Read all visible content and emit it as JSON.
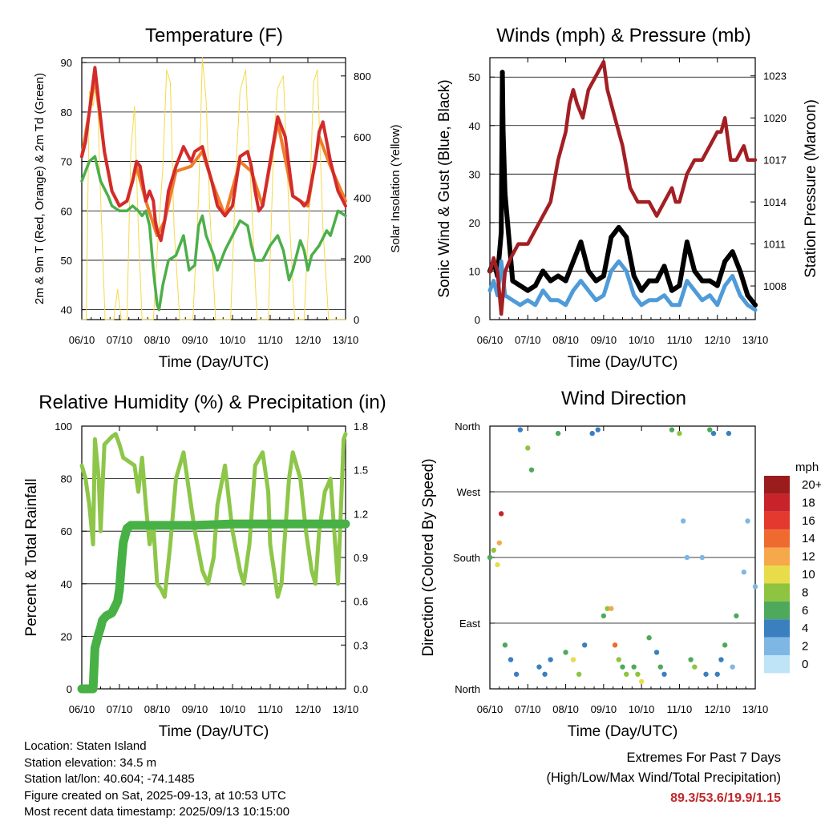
{
  "x_ticks": [
    "06/10",
    "07/10",
    "08/10",
    "09/10",
    "10/10",
    "11/10",
    "12/10",
    "13/10"
  ],
  "chart_data": [
    {
      "type": "line",
      "title": "Temperature (F)",
      "xlabel": "Time (Day/UTC)",
      "ylabel": "2m & 9m T (Red, Orange) & 2m Td (Green)",
      "ylabel_right": "Solar Insolation (Yellow)",
      "ylim": [
        38,
        91
      ],
      "yticks": [
        "90",
        "80",
        "70",
        "60",
        "50",
        "40"
      ],
      "ylim_right": [
        0,
        860
      ],
      "yticks_right": [
        "800",
        "600",
        "400",
        "200",
        "0"
      ],
      "colors": {
        "temp_2m": "#d32b2b",
        "temp_9m": "#f07d2a",
        "dewpoint_2m": "#4caf4a",
        "insolation": "#f5d94a"
      },
      "series": [
        {
          "name": "2m T",
          "x": [
            6.0,
            6.1,
            6.2,
            6.35,
            6.45,
            6.6,
            6.8,
            7.0,
            7.2,
            7.35,
            7.45,
            7.55,
            7.7,
            7.8,
            7.9,
            7.95,
            8.0,
            8.1,
            8.2,
            8.3,
            8.5,
            8.7,
            8.9,
            9.0,
            9.2,
            9.3,
            9.45,
            9.6,
            9.8,
            10.0,
            10.2,
            10.4,
            10.5,
            10.6,
            10.7,
            10.8,
            11.0,
            11.2,
            11.4,
            11.6,
            11.8,
            11.9,
            12.0,
            12.2,
            12.3,
            12.4,
            12.6,
            12.8,
            13.0
          ],
          "y": [
            71,
            74,
            80,
            89,
            82,
            72,
            64,
            61,
            62,
            66,
            70,
            69,
            62,
            64,
            62,
            58,
            56,
            54,
            58,
            64,
            69,
            73,
            70,
            72,
            73,
            70,
            66,
            61,
            59,
            61,
            71,
            72,
            69,
            64,
            60,
            61,
            70,
            79,
            75,
            63,
            62,
            61,
            62,
            70,
            76,
            78,
            70,
            64,
            61
          ]
        },
        {
          "name": "9m T",
          "x": [
            6.0,
            6.2,
            6.35,
            6.45,
            6.6,
            6.8,
            7.0,
            7.2,
            7.45,
            7.7,
            8.0,
            8.2,
            8.5,
            8.9,
            9.2,
            9.45,
            9.8,
            10.2,
            10.5,
            10.8,
            11.2,
            11.6,
            12.0,
            12.3,
            12.6,
            13.0
          ],
          "y": [
            71,
            80,
            87,
            81,
            72,
            64,
            61,
            62,
            69,
            62,
            55,
            58,
            68,
            69,
            72,
            66,
            59,
            70,
            68,
            61,
            78,
            63,
            61,
            75,
            69,
            62
          ]
        },
        {
          "name": "2m Td",
          "x": [
            6.0,
            6.1,
            6.2,
            6.35,
            6.5,
            6.7,
            6.8,
            7.0,
            7.2,
            7.35,
            7.5,
            7.6,
            7.7,
            7.8,
            7.9,
            8.0,
            8.05,
            8.15,
            8.3,
            8.5,
            8.7,
            8.85,
            9.0,
            9.1,
            9.2,
            9.3,
            9.5,
            9.6,
            9.8,
            10.0,
            10.2,
            10.4,
            10.5,
            10.6,
            10.8,
            11.0,
            11.2,
            11.35,
            11.5,
            11.6,
            11.8,
            11.9,
            12.0,
            12.1,
            12.3,
            12.5,
            12.6,
            12.8,
            13.0
          ],
          "y": [
            66,
            68,
            70,
            71,
            66,
            63,
            61,
            60,
            60,
            61,
            60,
            59,
            60,
            57,
            48,
            41,
            40,
            45,
            50,
            51,
            55,
            48,
            49,
            57,
            59,
            55,
            51,
            48,
            52,
            55,
            58,
            57,
            53,
            50,
            50,
            53,
            55,
            52,
            46,
            48,
            54,
            52,
            48,
            51,
            53,
            56,
            55,
            60,
            59
          ]
        },
        {
          "name": "Solar Insolation",
          "x": [
            6.0,
            6.12,
            6.2,
            6.3,
            6.4,
            6.5,
            6.62,
            6.85,
            6.95,
            7.05,
            7.2,
            7.3,
            7.4,
            7.5,
            7.6,
            7.78,
            7.9,
            8.0,
            8.15,
            8.25,
            8.35,
            8.45,
            8.6,
            8.8,
            8.95,
            9.1,
            9.2,
            9.3,
            9.4,
            9.55,
            9.8,
            9.95,
            10.1,
            10.2,
            10.35,
            10.5,
            10.65,
            10.8,
            10.95,
            11.1,
            11.2,
            11.35,
            11.5,
            11.65,
            11.8,
            11.9,
            12.05,
            12.15,
            12.25,
            12.4,
            12.55,
            12.7,
            13.0
          ],
          "y": [
            0,
            0,
            750,
            700,
            800,
            400,
            0,
            0,
            100,
            0,
            0,
            550,
            700,
            300,
            0,
            0,
            0,
            220,
            500,
            820,
            780,
            300,
            0,
            0,
            0,
            400,
            860,
            720,
            350,
            0,
            0,
            0,
            520,
            750,
            820,
            400,
            0,
            0,
            0,
            600,
            760,
            800,
            350,
            0,
            0,
            0,
            400,
            780,
            820,
            300,
            0,
            0,
            0
          ]
        }
      ]
    },
    {
      "type": "scatter",
      "title": "Winds (mph) & Pressure (mb)",
      "xlabel": "Time (Day/UTC)",
      "ylabel": "Sonic Wind & Gust (Blue, Black)",
      "ylabel_right": "Station Pressure (Maroon)",
      "ylim": [
        0,
        54
      ],
      "yticks": [
        "50",
        "40",
        "30",
        "20",
        "10",
        "0"
      ],
      "ylim_right": [
        1005.6,
        1024.3
      ],
      "yticks_right": [
        "1023",
        "1020",
        "1017",
        "1014",
        "1011",
        "1008"
      ],
      "colors": {
        "wind": "#4f9bd9",
        "gust": "#000000",
        "pressure": "#a31f24"
      },
      "series": [
        {
          "name": "Station Pressure",
          "x": [
            6.0,
            6.1,
            6.2,
            6.3,
            6.4,
            6.55,
            6.75,
            7.0,
            7.2,
            7.4,
            7.6,
            7.8,
            8.0,
            8.1,
            8.2,
            8.3,
            8.45,
            8.6,
            8.8,
            9.0,
            9.1,
            9.2,
            9.3,
            9.5,
            9.7,
            9.9,
            10.0,
            10.2,
            10.4,
            10.6,
            10.8,
            10.9,
            11.0,
            11.1,
            11.2,
            11.4,
            11.6,
            11.8,
            12.0,
            12.1,
            12.2,
            12.35,
            12.5,
            12.7,
            12.8,
            13.0
          ],
          "y": [
            1009,
            1010,
            1009,
            1006,
            1009,
            1010,
            1011,
            1011,
            1012,
            1013,
            1014,
            1017,
            1019,
            1021,
            1022,
            1021,
            1020,
            1022,
            1023,
            1024,
            1022,
            1021,
            1020,
            1018,
            1015,
            1014,
            1014,
            1014,
            1013,
            1014,
            1015,
            1014,
            1014,
            1015,
            1016,
            1017,
            1017,
            1018,
            1019,
            1019,
            1020,
            1017,
            1017,
            1018,
            1017,
            1017
          ]
        },
        {
          "name": "Sonic Wind",
          "x": [
            6.0,
            6.1,
            6.2,
            6.3,
            6.4,
            6.6,
            6.8,
            7.0,
            7.2,
            7.4,
            7.6,
            7.8,
            8.0,
            8.2,
            8.4,
            8.6,
            8.8,
            9.0,
            9.2,
            9.4,
            9.6,
            9.8,
            10.0,
            10.2,
            10.4,
            10.6,
            10.8,
            11.0,
            11.2,
            11.4,
            11.6,
            11.8,
            12.0,
            12.2,
            12.4,
            12.6,
            12.8,
            13.0
          ],
          "y": [
            6,
            8,
            5,
            12,
            5,
            4,
            3,
            4,
            3,
            6,
            4,
            4,
            3,
            6,
            8,
            6,
            4,
            5,
            10,
            12,
            10,
            5,
            3,
            4,
            4,
            5,
            3,
            3,
            8,
            6,
            4,
            5,
            3,
            7,
            9,
            5,
            3,
            2
          ]
        },
        {
          "name": "Gust",
          "x": [
            6.0,
            6.1,
            6.2,
            6.3,
            6.33,
            6.35,
            6.4,
            6.6,
            6.8,
            7.0,
            7.2,
            7.4,
            7.6,
            7.8,
            8.0,
            8.2,
            8.4,
            8.6,
            8.8,
            9.0,
            9.2,
            9.4,
            9.6,
            9.8,
            10.0,
            10.2,
            10.4,
            10.6,
            10.8,
            11.0,
            11.2,
            11.4,
            11.6,
            11.8,
            12.0,
            12.2,
            12.4,
            12.6,
            12.8,
            13.0
          ],
          "y": [
            10,
            12,
            9,
            18,
            51,
            39,
            26,
            8,
            7,
            6,
            7,
            10,
            8,
            9,
            8,
            12,
            16,
            10,
            8,
            9,
            17,
            19,
            17,
            9,
            6,
            8,
            8,
            11,
            6,
            7,
            16,
            10,
            8,
            8,
            7,
            12,
            14,
            10,
            5,
            3
          ]
        }
      ]
    },
    {
      "type": "line",
      "title": "Relative Humidity (%) & Precipitation (in)",
      "xlabel": "Time (Day/UTC)",
      "ylabel": "Percent & Total Rainfall",
      "ylim": [
        0,
        100
      ],
      "yticks": [
        "100",
        "80",
        "60",
        "40",
        "20",
        "0"
      ],
      "ylim_right": [
        0,
        1.8
      ],
      "yticks_right": [
        "1.8",
        "1.5",
        "1.2",
        "0.9",
        "0.6",
        "0.3",
        "0.0"
      ],
      "colors": {
        "rh": "#8dc649",
        "precip": "#47b145"
      },
      "series": [
        {
          "name": "Relative Humidity",
          "x": [
            6.0,
            6.1,
            6.2,
            6.3,
            6.35,
            6.45,
            6.5,
            6.6,
            6.8,
            6.9,
            7.0,
            7.1,
            7.2,
            7.4,
            7.5,
            7.6,
            7.7,
            7.8,
            7.9,
            8.0,
            8.1,
            8.2,
            8.35,
            8.5,
            8.7,
            8.85,
            9.0,
            9.2,
            9.35,
            9.5,
            9.6,
            9.8,
            10.0,
            10.2,
            10.3,
            10.45,
            10.6,
            10.8,
            10.95,
            11.0,
            11.1,
            11.2,
            11.3,
            11.5,
            11.6,
            11.8,
            11.95,
            12.1,
            12.2,
            12.3,
            12.45,
            12.6,
            12.8,
            12.95,
            13.0
          ],
          "y": [
            85,
            80,
            70,
            55,
            95,
            80,
            60,
            93,
            96,
            97,
            93,
            88,
            87,
            85,
            75,
            88,
            70,
            55,
            62,
            40,
            38,
            35,
            55,
            80,
            90,
            75,
            60,
            45,
            40,
            50,
            70,
            85,
            60,
            45,
            40,
            55,
            85,
            90,
            75,
            55,
            45,
            35,
            40,
            80,
            90,
            80,
            60,
            45,
            40,
            60,
            75,
            80,
            40,
            95,
            97
          ]
        },
        {
          "name": "Total Precipitation",
          "x": [
            6.0,
            6.2,
            6.3,
            6.35,
            6.45,
            6.5,
            6.55,
            6.65,
            6.8,
            6.95,
            7.0,
            7.05,
            7.1,
            7.2,
            7.3,
            7.5,
            8.0,
            9.0,
            10.0,
            11.0,
            12.0,
            13.0
          ],
          "y": [
            0.0,
            0.0,
            0.0,
            0.28,
            0.38,
            0.42,
            0.47,
            0.5,
            0.52,
            0.6,
            0.68,
            0.85,
            1.0,
            1.1,
            1.12,
            1.12,
            1.12,
            1.12,
            1.13,
            1.13,
            1.13,
            1.13
          ]
        }
      ]
    },
    {
      "type": "scatter",
      "title": "Wind Direction",
      "xlabel": "Time (Day/UTC)",
      "ylabel": "Direction (Colored By Speed)",
      "ylim": [
        0,
        360
      ],
      "yticks": [
        "North",
        "West",
        "South",
        "East",
        "North"
      ],
      "legend_title": "mph",
      "legend_labels": [
        "20+",
        "18",
        "16",
        "14",
        "12",
        "10",
        "8",
        "6",
        "4",
        "2",
        "0"
      ],
      "legend_colors": [
        "#9b1c1c",
        "#c8232a",
        "#e4392e",
        "#ef6a2f",
        "#f6a84a",
        "#e9dc4a",
        "#8ec43f",
        "#4fa95b",
        "#3a80bf",
        "#7fb7e4",
        "#bfe4f7"
      ],
      "series": [
        {
          "name": "Direction",
          "x": [
            6.0,
            6.1,
            6.2,
            6.25,
            6.3,
            6.4,
            6.55,
            6.7,
            6.8,
            7.0,
            7.1,
            7.3,
            7.45,
            7.6,
            7.8,
            8.0,
            8.2,
            8.35,
            8.5,
            8.7,
            8.85,
            9.0,
            9.1,
            9.2,
            9.3,
            9.4,
            9.5,
            9.6,
            9.8,
            9.9,
            10.0,
            10.2,
            10.4,
            10.5,
            10.6,
            10.8,
            11.0,
            11.1,
            11.2,
            11.3,
            11.4,
            11.6,
            11.7,
            11.8,
            11.9,
            12.0,
            12.1,
            12.2,
            12.3,
            12.4,
            12.5,
            12.7,
            12.8,
            13.0
          ],
          "y": [
            180,
            190,
            170,
            200,
            240,
            60,
            40,
            20,
            355,
            330,
            300,
            30,
            20,
            40,
            350,
            50,
            40,
            20,
            60,
            350,
            355,
            100,
            110,
            110,
            60,
            40,
            30,
            20,
            30,
            20,
            10,
            70,
            50,
            30,
            20,
            355,
            350,
            230,
            180,
            40,
            30,
            180,
            20,
            355,
            350,
            20,
            40,
            60,
            350,
            30,
            100,
            160,
            230,
            140
          ],
          "speed": [
            6,
            8,
            10,
            12,
            18,
            6,
            5,
            4,
            4,
            8,
            6,
            5,
            4,
            4,
            6,
            6,
            10,
            8,
            5,
            4,
            4,
            6,
            8,
            12,
            14,
            8,
            6,
            8,
            6,
            8,
            10,
            6,
            5,
            6,
            5,
            6,
            8,
            3,
            2,
            6,
            8,
            2,
            5,
            6,
            4,
            4,
            5,
            6,
            4,
            2,
            6,
            3,
            2,
            2
          ]
        }
      ]
    }
  ],
  "footer": {
    "location": "Location: Staten Island",
    "elevation": "Station elevation: 34.5 m",
    "latlon": "Station lat/lon: 40.604; -74.1485",
    "created": "Figure created on Sat, 2025-09-13, at 10:53 UTC",
    "latest": "Most recent data timestamp: 2025/09/13 10:15:00",
    "extremes_title": "Extremes For Past 7 Days",
    "extremes_subtitle": "(High/Low/Max Wind/Total Precipitation)",
    "extremes_values": "89.3/53.6/19.9/1.15"
  }
}
